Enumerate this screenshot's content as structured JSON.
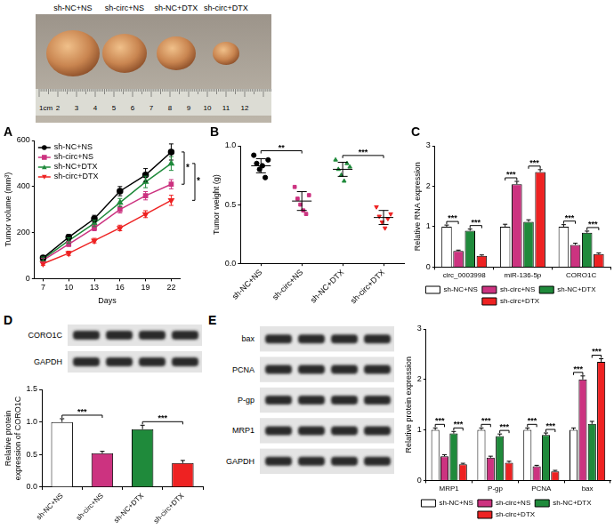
{
  "figure": {
    "photo": {
      "labels": [
        "sh-NC+NS",
        "sh-circ+NS",
        "sh-NC+DTX",
        "sh-circ+DTX"
      ],
      "ruler": [
        "1cm",
        "2",
        "3",
        "4",
        "5",
        "6",
        "7",
        "8",
        "9",
        "10",
        "11",
        "12"
      ]
    },
    "blots": {
      "D": [
        "CORO1C",
        "GAPDH"
      ],
      "E": [
        "bax",
        "PCNA",
        "P-gp",
        "MRP1",
        "GAPDH"
      ]
    }
  },
  "chart_data": [
    {
      "panel": "A",
      "type": "line",
      "x_label": "Days",
      "y_label": "Tumor volume (mm³)",
      "x": [
        7,
        10,
        13,
        16,
        19,
        22
      ],
      "xlim": [
        6,
        23
      ],
      "xticks": [
        7,
        10,
        13,
        16,
        19,
        22
      ],
      "ylim": [
        0,
        600
      ],
      "yticks": [
        0,
        200,
        400,
        600
      ],
      "grid": false,
      "legend": "top left",
      "series": [
        {
          "name": "sh-NC+NS",
          "color": "#000000",
          "marker": "circle",
          "values": [
            90,
            180,
            260,
            380,
            450,
            550
          ],
          "errors": [
            10,
            12,
            15,
            20,
            28,
            35
          ]
        },
        {
          "name": "sh-circ+NS",
          "color": "#cc3380",
          "marker": "square",
          "values": [
            80,
            150,
            220,
            300,
            360,
            410
          ],
          "errors": [
            8,
            10,
            12,
            15,
            18,
            20
          ]
        },
        {
          "name": "sh-NC+DTX",
          "color": "#1f8a3b",
          "marker": "triangle",
          "values": [
            85,
            165,
            240,
            330,
            420,
            500
          ],
          "errors": [
            9,
            12,
            14,
            18,
            25,
            30
          ]
        },
        {
          "name": "sh-circ+DTX",
          "color": "#ee2222",
          "marker": "triangle-down",
          "values": [
            65,
            110,
            165,
            220,
            280,
            340
          ],
          "errors": [
            7,
            9,
            10,
            12,
            15,
            22
          ]
        }
      ],
      "annotations": [
        {
          "from": "sh-NC+NS",
          "to": "sh-circ+NS",
          "text": "*"
        },
        {
          "from": "sh-NC+DTX",
          "to": "sh-circ+DTX",
          "text": "*"
        }
      ]
    },
    {
      "panel": "B",
      "type": "dot",
      "y_label": "Tumor weight (g)",
      "ylim": [
        0,
        1.0
      ],
      "yticks": [
        {
          "value": 0,
          "label": "0.0"
        },
        {
          "value": 0.5,
          "label": "0.5"
        },
        {
          "value": 1.0,
          "label": "1.0"
        }
      ],
      "grid": false,
      "series": [
        {
          "name": "sh-NC+NS",
          "color": "#000000",
          "marker": "circle",
          "values": [
            0.92,
            0.85,
            0.8,
            0.83,
            0.73,
            0.88
          ],
          "mean": 0.83,
          "error": 0.06
        },
        {
          "name": "sh-circ+NS",
          "color": "#cc3380",
          "marker": "square",
          "values": [
            0.65,
            0.55,
            0.5,
            0.45,
            0.42,
            0.58
          ],
          "mean": 0.53,
          "error": 0.08
        },
        {
          "name": "sh-NC+DTX",
          "color": "#1f8a3b",
          "marker": "triangle",
          "values": [
            0.88,
            0.8,
            0.75,
            0.7,
            0.85,
            0.82
          ],
          "mean": 0.8,
          "error": 0.06
        },
        {
          "name": "sh-circ+DTX",
          "color": "#ee2222",
          "marker": "triangle-down",
          "values": [
            0.48,
            0.4,
            0.35,
            0.3,
            0.38,
            0.42
          ],
          "mean": 0.39,
          "error": 0.06
        }
      ],
      "annotations": [
        {
          "from": "sh-NC+NS",
          "to": "sh-circ+NS",
          "text": "**"
        },
        {
          "from": "sh-NC+DTX",
          "to": "sh-circ+DTX",
          "text": "***"
        }
      ]
    },
    {
      "panel": "C",
      "type": "bar",
      "y_label": "Relative RNA expression",
      "categories": [
        "circ_0003998",
        "miR-136-5p",
        "CORO1C"
      ],
      "ylim": [
        0,
        3
      ],
      "yticks": [
        0,
        1,
        2,
        3
      ],
      "grid": false,
      "legend": "bottom",
      "series": [
        {
          "name": "sh-NC+NS",
          "color": "#ffffff",
          "values": [
            1.0,
            1.0,
            1.0
          ],
          "errors": [
            0.04,
            0.06,
            0.05
          ]
        },
        {
          "name": "sh-circ+NS",
          "color": "#cc3380",
          "values": [
            0.4,
            2.05,
            0.55
          ],
          "errors": [
            0.02,
            0.07,
            0.04
          ]
        },
        {
          "name": "sh-NC+DTX",
          "color": "#1f8a3b",
          "values": [
            0.9,
            1.12,
            0.85
          ],
          "errors": [
            0.04,
            0.05,
            0.04
          ]
        },
        {
          "name": "sh-circ+DTX",
          "color": "#ee2222",
          "values": [
            0.28,
            2.35,
            0.32
          ],
          "errors": [
            0.02,
            0.06,
            0.03
          ]
        }
      ],
      "annotations": [
        {
          "category": "circ_0003998",
          "from": "sh-NC+NS",
          "to": "sh-circ+NS",
          "text": "***"
        },
        {
          "category": "circ_0003998",
          "from": "sh-NC+DTX",
          "to": "sh-circ+DTX",
          "text": "***"
        },
        {
          "category": "miR-136-5p",
          "from": "sh-NC+NS",
          "to": "sh-circ+NS",
          "text": "***"
        },
        {
          "category": "miR-136-5p",
          "from": "sh-NC+DTX",
          "to": "sh-circ+DTX",
          "text": "***"
        },
        {
          "category": "CORO1C",
          "from": "sh-NC+NS",
          "to": "sh-circ+NS",
          "text": "***"
        },
        {
          "category": "CORO1C",
          "from": "sh-NC+DTX",
          "to": "sh-circ+DTX",
          "text": "***"
        }
      ]
    },
    {
      "panel": "D",
      "type": "bar",
      "y_label": "Relative protein expression of CORO1C",
      "categories": [
        "sh-NC+NS",
        "sh-circ+NS",
        "sh-NC+DTX",
        "sh-circ+DTX"
      ],
      "values": [
        1.0,
        0.52,
        0.89,
        0.37
      ],
      "errors": [
        0.05,
        0.03,
        0.06,
        0.04
      ],
      "colors": [
        "#ffffff",
        "#cc3380",
        "#1f8a3b",
        "#ee2222"
      ],
      "ylim": [
        0,
        1.5
      ],
      "yticks": [
        {
          "value": 0,
          "label": "0.0"
        },
        {
          "value": 0.5,
          "label": "0.5"
        },
        {
          "value": 1.0,
          "label": "1.0"
        },
        {
          "value": 1.5,
          "label": "1.5"
        }
      ],
      "grid": false,
      "annotations": [
        {
          "from": "sh-NC+NS",
          "to": "sh-circ+NS",
          "text": "***"
        },
        {
          "from": "sh-NC+DTX",
          "to": "sh-circ+DTX",
          "text": "***"
        }
      ]
    },
    {
      "panel": "E",
      "type": "bar",
      "y_label": "Relative protein expression",
      "categories": [
        "MRP1",
        "P-gp",
        "PCNA",
        "bax"
      ],
      "ylim": [
        0,
        3
      ],
      "yticks": [
        0,
        1,
        2,
        3
      ],
      "grid": false,
      "legend": "bottom",
      "series": [
        {
          "name": "sh-NC+NS",
          "color": "#ffffff",
          "values": [
            1.0,
            1.0,
            1.0,
            1.0
          ],
          "errors": [
            0.04,
            0.04,
            0.04,
            0.04
          ]
        },
        {
          "name": "sh-circ+NS",
          "color": "#cc3380",
          "values": [
            0.48,
            0.45,
            0.28,
            2.0
          ],
          "errors": [
            0.03,
            0.03,
            0.02,
            0.07
          ]
        },
        {
          "name": "sh-NC+DTX",
          "color": "#1f8a3b",
          "values": [
            0.93,
            0.88,
            0.9,
            1.12
          ],
          "errors": [
            0.04,
            0.04,
            0.04,
            0.05
          ]
        },
        {
          "name": "sh-circ+DTX",
          "color": "#ee2222",
          "values": [
            0.32,
            0.35,
            0.18,
            2.35
          ],
          "errors": [
            0.02,
            0.03,
            0.02,
            0.06
          ]
        }
      ],
      "annotations": [
        {
          "category": "MRP1",
          "from": "sh-NC+NS",
          "to": "sh-circ+NS",
          "text": "***"
        },
        {
          "category": "MRP1",
          "from": "sh-NC+DTX",
          "to": "sh-circ+DTX",
          "text": "***"
        },
        {
          "category": "P-gp",
          "from": "sh-NC+NS",
          "to": "sh-circ+NS",
          "text": "***"
        },
        {
          "category": "P-gp",
          "from": "sh-NC+DTX",
          "to": "sh-circ+DTX",
          "text": "***"
        },
        {
          "category": "PCNA",
          "from": "sh-NC+NS",
          "to": "sh-circ+NS",
          "text": "***"
        },
        {
          "category": "PCNA",
          "from": "sh-NC+DTX",
          "to": "sh-circ+DTX",
          "text": "***"
        },
        {
          "category": "bax",
          "from": "sh-NC+NS",
          "to": "sh-circ+NS",
          "text": "***"
        },
        {
          "category": "bax",
          "from": "sh-NC+DTX",
          "to": "sh-circ+DTX",
          "text": "***"
        }
      ]
    }
  ]
}
